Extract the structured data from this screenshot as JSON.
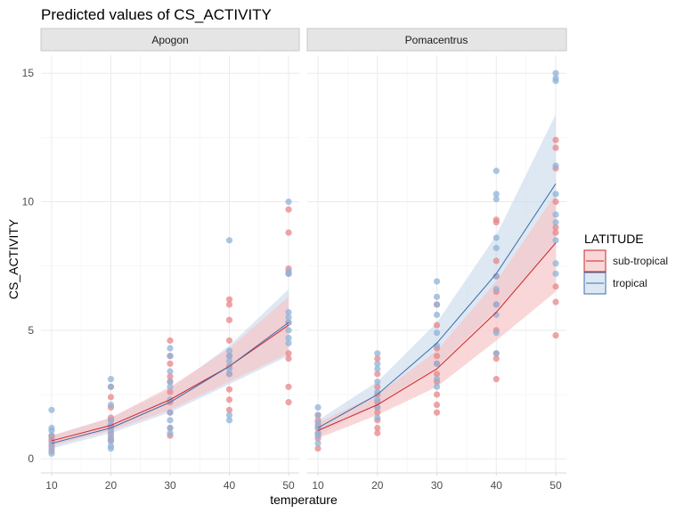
{
  "chart_data": {
    "type": "line",
    "title": "Predicted values of CS_ACTIVITY",
    "xlabel": "temperature",
    "ylabel": "CS_ACTIVITY",
    "x_ticks": [
      10,
      20,
      30,
      40,
      50
    ],
    "y_ticks": [
      0,
      5,
      10,
      15
    ],
    "xlim": [
      8.2,
      51.8
    ],
    "ylim": [
      -0.55,
      15.7
    ],
    "grid": true,
    "legend": {
      "title": "LATITUDE",
      "placement": "right",
      "entries": [
        {
          "label": "sub-tropical",
          "color": "#CC2529"
        },
        {
          "label": "tropical",
          "color": "#3E6CA8"
        }
      ]
    },
    "colors": {
      "sub_tropical": "#CC2529",
      "tropical": "#3E6CA8",
      "sub_tropical_points": "#E8868A",
      "tropical_points": "#8FB3D8",
      "sub_tropical_ribbon": "#F7C6C8",
      "tropical_ribbon": "#C8D8EB",
      "strip_background": "#E5E5E5",
      "grid": "#EBEBEB"
    },
    "panels": [
      {
        "strip": "Apogon",
        "x": [
          10,
          20,
          30,
          40,
          50
        ],
        "series": [
          {
            "name": "sub-tropical",
            "values": [
              0.7,
              1.3,
              2.3,
              3.6,
              5.2
            ],
            "lower": [
              0.5,
              1.1,
              1.9,
              3.0,
              4.1
            ],
            "upper": [
              0.9,
              1.6,
              2.8,
              4.3,
              6.3
            ],
            "points": [
              [
                10,
                0.3
              ],
              [
                10,
                0.5
              ],
              [
                10,
                0.7
              ],
              [
                10,
                0.8
              ],
              [
                10,
                0.9
              ],
              [
                20,
                0.7
              ],
              [
                20,
                0.8
              ],
              [
                20,
                1.0
              ],
              [
                20,
                1.2
              ],
              [
                20,
                1.3
              ],
              [
                20,
                1.5
              ],
              [
                20,
                1.6
              ],
              [
                20,
                2.0
              ],
              [
                20,
                2.4
              ],
              [
                20,
                2.8
              ],
              [
                30,
                0.9
              ],
              [
                30,
                1.2
              ],
              [
                30,
                1.8
              ],
              [
                30,
                2.2
              ],
              [
                30,
                2.6
              ],
              [
                30,
                3.0
              ],
              [
                30,
                3.2
              ],
              [
                30,
                3.7
              ],
              [
                30,
                4.0
              ],
              [
                30,
                4.6
              ],
              [
                40,
                1.9
              ],
              [
                40,
                2.3
              ],
              [
                40,
                2.7
              ],
              [
                40,
                3.3
              ],
              [
                40,
                3.6
              ],
              [
                40,
                4.0
              ],
              [
                40,
                4.6
              ],
              [
                40,
                5.4
              ],
              [
                40,
                6.0
              ],
              [
                40,
                6.2
              ],
              [
                50,
                2.2
              ],
              [
                50,
                2.8
              ],
              [
                50,
                3.9
              ],
              [
                50,
                4.1
              ],
              [
                50,
                5.3
              ],
              [
                50,
                7.2
              ],
              [
                50,
                7.4
              ],
              [
                50,
                8.8
              ],
              [
                50,
                9.7
              ]
            ]
          },
          {
            "name": "tropical",
            "values": [
              0.6,
              1.2,
              2.2,
              3.6,
              5.3
            ],
            "lower": [
              0.4,
              1.0,
              1.8,
              2.9,
              4.0
            ],
            "upper": [
              0.9,
              1.6,
              2.7,
              4.4,
              6.6
            ],
            "points": [
              [
                10,
                0.2
              ],
              [
                10,
                0.4
              ],
              [
                10,
                0.6
              ],
              [
                10,
                0.9
              ],
              [
                10,
                1.1
              ],
              [
                10,
                1.2
              ],
              [
                10,
                1.9
              ],
              [
                20,
                0.4
              ],
              [
                20,
                0.5
              ],
              [
                20,
                0.7
              ],
              [
                20,
                0.9
              ],
              [
                20,
                1.1
              ],
              [
                20,
                1.3
              ],
              [
                20,
                1.5
              ],
              [
                20,
                2.1
              ],
              [
                20,
                2.8
              ],
              [
                20,
                3.1
              ],
              [
                30,
                1.0
              ],
              [
                30,
                1.2
              ],
              [
                30,
                1.5
              ],
              [
                30,
                1.8
              ],
              [
                30,
                2.3
              ],
              [
                30,
                2.8
              ],
              [
                30,
                3.0
              ],
              [
                30,
                3.4
              ],
              [
                30,
                4.0
              ],
              [
                30,
                4.3
              ],
              [
                40,
                1.5
              ],
              [
                40,
                1.7
              ],
              [
                40,
                3.3
              ],
              [
                40,
                3.5
              ],
              [
                40,
                3.8
              ],
              [
                40,
                4.0
              ],
              [
                40,
                4.2
              ],
              [
                40,
                8.5
              ],
              [
                50,
                4.5
              ],
              [
                50,
                4.7
              ],
              [
                50,
                5.0
              ],
              [
                50,
                5.3
              ],
              [
                50,
                5.5
              ],
              [
                50,
                5.7
              ],
              [
                50,
                7.2
              ],
              [
                50,
                7.3
              ],
              [
                50,
                10.0
              ]
            ]
          }
        ]
      },
      {
        "strip": "Pomacentrus",
        "x": [
          10,
          20,
          30,
          40,
          50
        ],
        "series": [
          {
            "name": "sub-tropical",
            "values": [
              1.1,
              2.1,
              3.5,
              5.7,
              8.4
            ],
            "lower": [
              0.8,
              1.7,
              2.8,
              4.6,
              6.5
            ],
            "upper": [
              1.4,
              2.5,
              4.2,
              6.9,
              10.3
            ],
            "points": [
              [
                10,
                0.4
              ],
              [
                10,
                0.8
              ],
              [
                10,
                1.0
              ],
              [
                10,
                1.2
              ],
              [
                10,
                1.3
              ],
              [
                10,
                1.5
              ],
              [
                10,
                1.7
              ],
              [
                20,
                1.0
              ],
              [
                20,
                1.2
              ],
              [
                20,
                1.5
              ],
              [
                20,
                1.8
              ],
              [
                20,
                2.0
              ],
              [
                20,
                2.2
              ],
              [
                20,
                2.5
              ],
              [
                20,
                2.8
              ],
              [
                20,
                3.3
              ],
              [
                20,
                3.9
              ],
              [
                30,
                1.8
              ],
              [
                30,
                2.1
              ],
              [
                30,
                2.5
              ],
              [
                30,
                3.0
              ],
              [
                30,
                3.3
              ],
              [
                30,
                3.7
              ],
              [
                30,
                4.0
              ],
              [
                30,
                4.3
              ],
              [
                30,
                5.2
              ],
              [
                30,
                6.0
              ],
              [
                40,
                3.1
              ],
              [
                40,
                3.9
              ],
              [
                40,
                4.1
              ],
              [
                40,
                5.0
              ],
              [
                40,
                6.0
              ],
              [
                40,
                6.5
              ],
              [
                40,
                7.1
              ],
              [
                40,
                7.7
              ],
              [
                40,
                9.2
              ],
              [
                40,
                9.3
              ],
              [
                50,
                4.8
              ],
              [
                50,
                6.1
              ],
              [
                50,
                6.7
              ],
              [
                50,
                8.8
              ],
              [
                50,
                9.0
              ],
              [
                50,
                10.0
              ],
              [
                50,
                11.3
              ],
              [
                50,
                12.1
              ],
              [
                50,
                12.4
              ]
            ]
          },
          {
            "name": "tropical",
            "values": [
              1.2,
              2.5,
              4.5,
              7.2,
              10.7
            ],
            "lower": [
              0.9,
              2.1,
              3.6,
              5.8,
              8.3
            ],
            "upper": [
              1.5,
              3.0,
              5.3,
              8.7,
              13.4
            ],
            "points": [
              [
                10,
                0.6
              ],
              [
                10,
                0.9
              ],
              [
                10,
                1.0
              ],
              [
                10,
                1.2
              ],
              [
                10,
                1.4
              ],
              [
                10,
                1.7
              ],
              [
                10,
                2.0
              ],
              [
                20,
                1.6
              ],
              [
                20,
                2.0
              ],
              [
                20,
                2.3
              ],
              [
                20,
                2.6
              ],
              [
                20,
                3.0
              ],
              [
                20,
                3.5
              ],
              [
                20,
                3.7
              ],
              [
                20,
                4.1
              ],
              [
                30,
                2.8
              ],
              [
                30,
                3.1
              ],
              [
                30,
                3.7
              ],
              [
                30,
                4.4
              ],
              [
                30,
                4.9
              ],
              [
                30,
                5.6
              ],
              [
                30,
                6.0
              ],
              [
                30,
                6.3
              ],
              [
                30,
                6.9
              ],
              [
                40,
                4.1
              ],
              [
                40,
                4.9
              ],
              [
                40,
                5.6
              ],
              [
                40,
                6.0
              ],
              [
                40,
                6.6
              ],
              [
                40,
                7.1
              ],
              [
                40,
                8.2
              ],
              [
                40,
                8.6
              ],
              [
                40,
                10.1
              ],
              [
                40,
                10.3
              ],
              [
                40,
                11.2
              ],
              [
                50,
                7.2
              ],
              [
                50,
                7.6
              ],
              [
                50,
                8.5
              ],
              [
                50,
                9.2
              ],
              [
                50,
                9.5
              ],
              [
                50,
                10.3
              ],
              [
                50,
                11.4
              ],
              [
                50,
                14.7
              ],
              [
                50,
                14.8
              ],
              [
                50,
                15.0
              ]
            ]
          }
        ]
      }
    ]
  }
}
